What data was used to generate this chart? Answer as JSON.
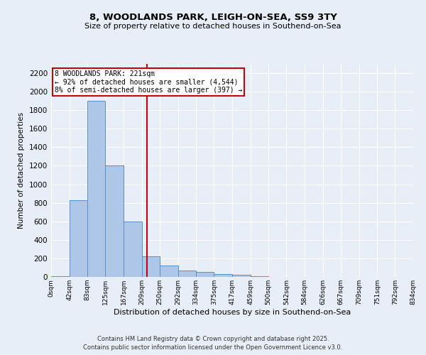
{
  "title1": "8, WOODLANDS PARK, LEIGH-ON-SEA, SS9 3TY",
  "title2": "Size of property relative to detached houses in Southend-on-Sea",
  "xlabel": "Distribution of detached houses by size in Southend-on-Sea",
  "ylabel": "Number of detached properties",
  "bin_edges": [
    0,
    42,
    83,
    125,
    167,
    209,
    250,
    292,
    334,
    375,
    417,
    459,
    500,
    542,
    584,
    626,
    667,
    709,
    751,
    792,
    834
  ],
  "bar_heights": [
    10,
    830,
    1900,
    1200,
    600,
    220,
    120,
    70,
    50,
    30,
    20,
    5,
    0,
    0,
    2,
    0,
    0,
    0,
    0,
    0
  ],
  "bar_color": "#aec6e8",
  "bar_edge_color": "#5a8fc4",
  "property_size": 221,
  "annotation_title": "8 WOODLANDS PARK: 221sqm",
  "annotation_line1": "← 92% of detached houses are smaller (4,544)",
  "annotation_line2": "8% of semi-detached houses are larger (397) →",
  "annotation_box_color": "#cc0000",
  "vline_color": "#cc0000",
  "ylim": [
    0,
    2300
  ],
  "yticks": [
    0,
    200,
    400,
    600,
    800,
    1000,
    1200,
    1400,
    1600,
    1800,
    2000,
    2200
  ],
  "background_color": "#e8eef7",
  "grid_color": "#ffffff",
  "footer1": "Contains HM Land Registry data © Crown copyright and database right 2025.",
  "footer2": "Contains public sector information licensed under the Open Government Licence v3.0.",
  "tick_labels": [
    "0sqm",
    "42sqm",
    "83sqm",
    "125sqm",
    "167sqm",
    "209sqm",
    "250sqm",
    "292sqm",
    "334sqm",
    "375sqm",
    "417sqm",
    "459sqm",
    "500sqm",
    "542sqm",
    "584sqm",
    "626sqm",
    "667sqm",
    "709sqm",
    "751sqm",
    "792sqm",
    "834sqm"
  ]
}
